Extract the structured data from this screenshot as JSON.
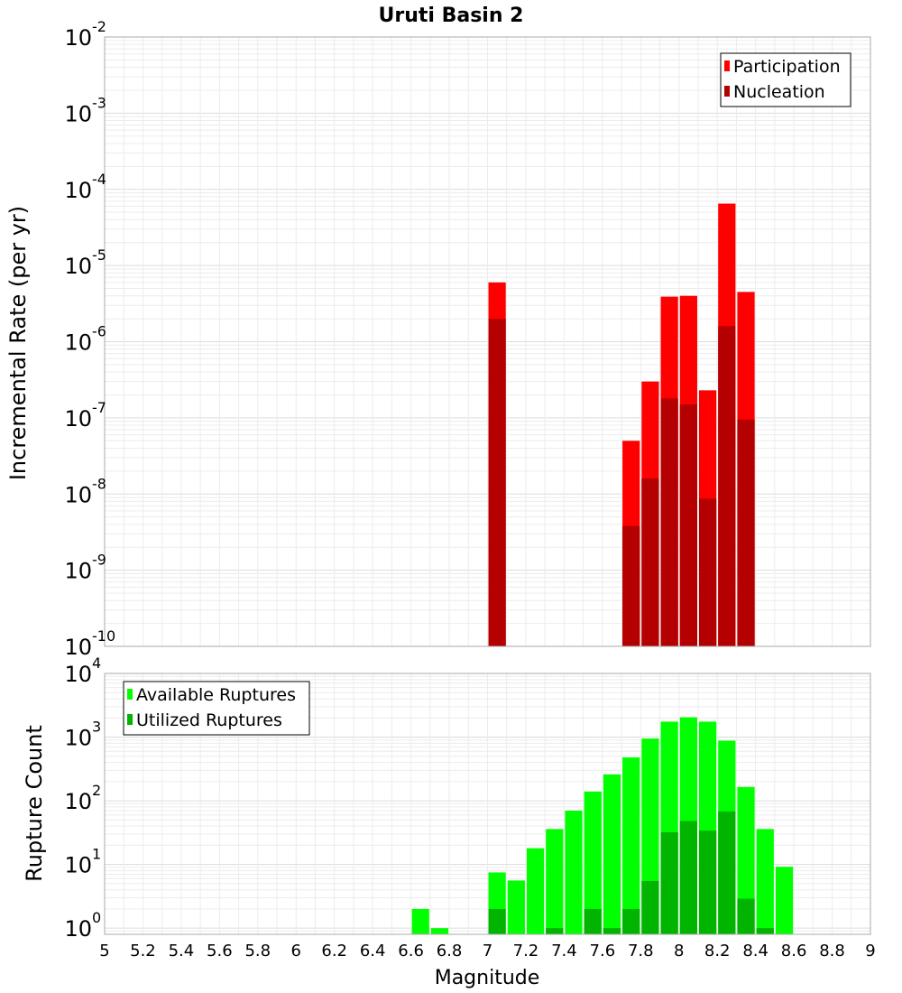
{
  "title": "Uruti Basin 2",
  "x_axis": {
    "label": "Magnitude",
    "range": [
      5,
      9
    ],
    "tick_labels": [
      "5",
      "5.2",
      "5.4",
      "5.6",
      "5.8",
      "6",
      "6.2",
      "6.4",
      "6.6",
      "6.8",
      "7",
      "7.2",
      "7.4",
      "7.6",
      "7.8",
      "8",
      "8.2",
      "8.4",
      "8.6",
      "8.8",
      "9"
    ]
  },
  "chart_data": [
    {
      "type": "bar",
      "name": "rates",
      "ylabel": "Incremental Rate (per yr)",
      "yscale": "log",
      "ylim": [
        1e-10,
        0.01
      ],
      "y_tick_exponents": [
        "-10",
        "-9",
        "-8",
        "-7",
        "-6",
        "-5",
        "-4",
        "-3",
        "-2"
      ],
      "y_tick_base": "10",
      "grid": true,
      "legend_position": "top-right",
      "x": [
        7.05,
        7.75,
        7.85,
        7.95,
        8.05,
        8.15,
        8.25,
        8.35
      ],
      "series": [
        {
          "name": "Participation",
          "color": "#ff0000",
          "values": [
            6e-06,
            5e-08,
            3e-07,
            3.9e-06,
            4e-06,
            2.3e-07,
            6.5e-05,
            4.5e-06
          ]
        },
        {
          "name": "Nucleation",
          "color": "#b40000",
          "values": [
            2e-06,
            3.8e-09,
            1.6e-08,
            1.8e-07,
            1.5e-07,
            8.7e-09,
            1.6e-06,
            9.5e-08
          ]
        }
      ]
    },
    {
      "type": "bar",
      "name": "counts",
      "ylabel": "Rupture Count",
      "yscale": "log",
      "ylim": [
        0.8,
        10000
      ],
      "y_tick_exponents": [
        "0",
        "1",
        "2",
        "3",
        "4"
      ],
      "y_tick_base": "10",
      "grid": true,
      "legend_position": "top-left",
      "x": [
        6.65,
        6.75,
        7.05,
        7.15,
        7.25,
        7.35,
        7.45,
        7.55,
        7.65,
        7.75,
        7.85,
        7.95,
        8.05,
        8.15,
        8.25,
        8.35,
        8.45,
        8.55
      ],
      "series": [
        {
          "name": "Available Ruptures",
          "color": "#00ff00",
          "values": [
            2,
            1,
            7.5,
            5.6,
            18,
            36,
            70,
            140,
            260,
            480,
            950,
            1750,
            2050,
            1750,
            880,
            165,
            36,
            9.2
          ]
        },
        {
          "name": "Utilized Ruptures",
          "color": "#00b400",
          "values": [
            0,
            0,
            2,
            0,
            0,
            1,
            0,
            2,
            1,
            2,
            5.5,
            32,
            48,
            34,
            68,
            2.9,
            1,
            0
          ]
        }
      ]
    }
  ]
}
